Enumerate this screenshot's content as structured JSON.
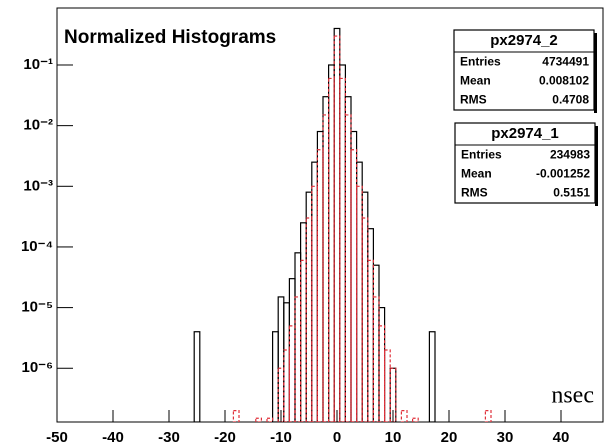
{
  "chart_data": {
    "type": "histogram",
    "title": "Normalized Histograms",
    "annotation": "nsec",
    "log_y": true,
    "xlim": [
      -50,
      47.5
    ],
    "ylim": [
      1.3e-07,
      0.87
    ],
    "xticks": [
      -50,
      -40,
      -30,
      -20,
      -10,
      0,
      10,
      20,
      30,
      40
    ],
    "yticks": [
      {
        "value": 1e-06,
        "label": "10⁻⁶"
      },
      {
        "value": 1e-05,
        "label": "10⁻⁵"
      },
      {
        "value": 0.0001,
        "label": "10⁻⁴"
      },
      {
        "value": 0.001,
        "label": "10⁻³"
      },
      {
        "value": 0.01,
        "label": "10⁻²"
      },
      {
        "value": 0.1,
        "label": "10⁻¹"
      }
    ],
    "bins": [
      -26.5,
      -25.5,
      -24.5,
      -23.5,
      -22.5,
      -21.5,
      -20.5,
      -19.5,
      -18.5,
      -17.5,
      -16.5,
      -15.5,
      -14.5,
      -13.5,
      -12.5,
      -11.5,
      -10.5,
      -9.5,
      -8.5,
      -7.5,
      -6.5,
      -5.5,
      -4.5,
      -3.5,
      -2.5,
      -1.5,
      -0.5,
      0.5,
      1.5,
      2.5,
      3.5,
      4.5,
      5.5,
      6.5,
      7.5,
      8.5,
      9.5,
      10.5,
      11.5,
      12.5,
      13.5,
      14.5,
      15.5,
      16.5,
      17.5,
      18.5,
      19.5,
      20.5,
      21.5,
      22.5,
      23.5,
      24.5,
      25.5,
      26.5,
      27.5
    ],
    "stat_labels": [
      "Entries",
      "Mean",
      "RMS"
    ],
    "series": [
      {
        "name": "px2974_2",
        "color": "#000000",
        "style": "solid",
        "entries": 4734491,
        "mean": 0.008102,
        "rms": 0.4708,
        "values": [
          0,
          4e-06,
          0,
          0,
          0,
          0,
          0,
          0,
          0,
          0,
          0,
          0,
          0,
          0,
          0,
          4e-06,
          1.5e-05,
          1.2e-05,
          3e-05,
          8e-05,
          0.00025,
          0.0008,
          0.0025,
          0.008,
          0.03,
          0.1,
          0.4,
          0.1,
          0.03,
          0.008,
          0.0025,
          0.0008,
          0.0002,
          5e-05,
          1e-05,
          0,
          1e-06,
          0,
          0,
          0,
          0,
          0,
          0,
          4e-06,
          0,
          0,
          0,
          0,
          0,
          0,
          0,
          0,
          0,
          0
        ]
      },
      {
        "name": "px2974_1",
        "color": "#e0303a",
        "style": "dashed",
        "entries": 234983,
        "mean": -0.001252,
        "rms": 0.5151,
        "values": [
          0,
          0,
          0,
          0,
          0,
          0,
          0,
          0,
          2e-07,
          0,
          0,
          0,
          1.5e-07,
          0,
          1.5e-07,
          0,
          1e-06,
          2e-06,
          5e-06,
          1.5e-05,
          6e-05,
          0.0003,
          0.001,
          0.004,
          0.015,
          0.06,
          0.3,
          0.06,
          0.015,
          0.004,
          0.001,
          0.0003,
          6e-05,
          1.5e-05,
          5e-06,
          2e-06,
          1e-06,
          0,
          2e-07,
          0,
          1.5e-07,
          0,
          0,
          0,
          0,
          0,
          0,
          0,
          0,
          0,
          0,
          0,
          0,
          2e-07
        ]
      }
    ]
  }
}
